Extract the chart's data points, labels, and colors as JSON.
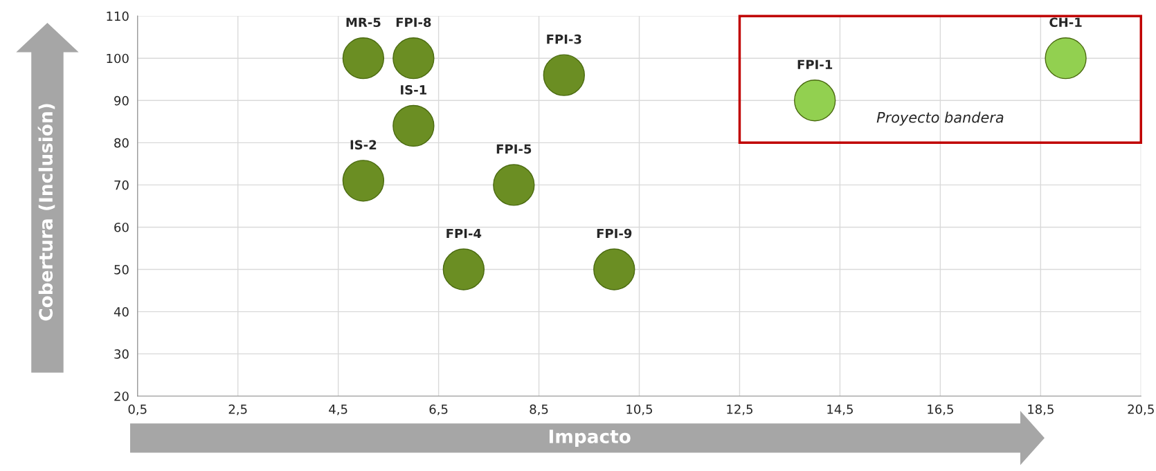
{
  "chart_data": {
    "type": "scatter",
    "xlabel": "Impacto",
    "ylabel": "Cobertura (Inclusión)",
    "x": [
      5,
      6,
      9,
      6,
      5,
      8,
      7,
      10,
      14,
      19
    ],
    "series": [
      {
        "values": [
          100,
          100,
          96,
          84,
          71,
          70,
          50,
          50,
          90,
          100
        ],
        "colors": [
          "#6b8e23",
          "#6b8e23",
          "#6b8e23",
          "#6b8e23",
          "#6b8e23",
          "#6b8e23",
          "#6b8e23",
          "#6b8e23",
          "#92d050",
          "#92d050"
        ]
      }
    ],
    "annotations": [
      {
        "text": "MR-5",
        "x": 5,
        "y": 100
      },
      {
        "text": "FPI-8",
        "x": 6,
        "y": 100
      },
      {
        "text": "FPI-3",
        "x": 9,
        "y": 96
      },
      {
        "text": "IS-1",
        "x": 6,
        "y": 84
      },
      {
        "text": "IS-2",
        "x": 5,
        "y": 71
      },
      {
        "text": "FPI-5",
        "x": 8,
        "y": 70
      },
      {
        "text": "FPI-4",
        "x": 7,
        "y": 50
      },
      {
        "text": "FPI-9",
        "x": 10,
        "y": 50
      },
      {
        "text": "FPI-1",
        "x": 14,
        "y": 90
      },
      {
        "text": "CH-1",
        "x": 19,
        "y": 100
      },
      "Proyecto bandera"
    ],
    "xlim": [
      0.5,
      20.5
    ],
    "xticks": [
      {
        "value": 0.5,
        "label": "0,5"
      },
      {
        "value": 2.5,
        "label": "2,5"
      },
      {
        "value": 4.5,
        "label": "4,5"
      },
      {
        "value": 6.5,
        "label": "6,5"
      },
      {
        "value": 8.5,
        "label": "8,5"
      },
      {
        "value": 10.5,
        "label": "10,5"
      },
      {
        "value": 12.5,
        "label": "12,5"
      },
      {
        "value": 14.5,
        "label": "14,5"
      },
      {
        "value": 16.5,
        "label": "16,5"
      },
      {
        "value": 18.5,
        "label": "18,5"
      },
      {
        "value": 20.5,
        "label": "20,5"
      }
    ],
    "ylim": [
      20,
      110
    ],
    "yticks": [
      20,
      30,
      40,
      50,
      60,
      70,
      80,
      90,
      100,
      110
    ],
    "grid": true,
    "marker": "circle",
    "legend": false
  }
}
